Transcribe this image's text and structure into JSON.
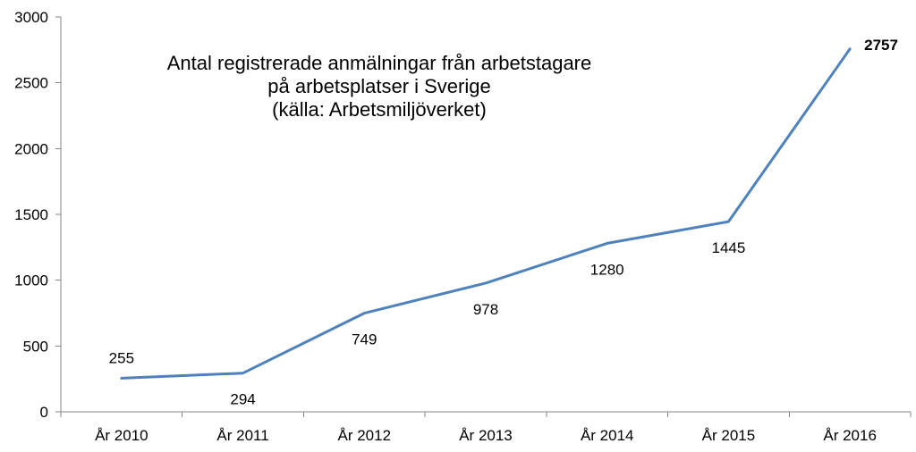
{
  "chart_data": {
    "type": "line",
    "title_lines": [
      "Antal registrerade anmälningar från arbetstagare",
      "på arbetsplatser i Sverige",
      "(källa: Arbetsmiljöverket)"
    ],
    "categories": [
      "År 2010",
      "År 2011",
      "År 2012",
      "År 2013",
      "År 2014",
      "År 2015",
      "År 2016"
    ],
    "series": [
      {
        "values": [
          255,
          294,
          749,
          978,
          1280,
          1445,
          2757
        ],
        "color": "#4F81BD",
        "data_labels": [
          "255",
          "294",
          "749",
          "978",
          "1280",
          "1445",
          "2757"
        ]
      }
    ],
    "ylim": [
      0,
      3000
    ],
    "y_ticks": [
      0,
      500,
      1000,
      1500,
      2000,
      2500,
      3000
    ],
    "y_tick_labels": [
      "0",
      "500",
      "1000",
      "1500",
      "2000",
      "2500",
      "3000"
    ],
    "xlabel": "",
    "ylabel": "",
    "grid": false,
    "legend": "none",
    "bold_last_label": true
  }
}
